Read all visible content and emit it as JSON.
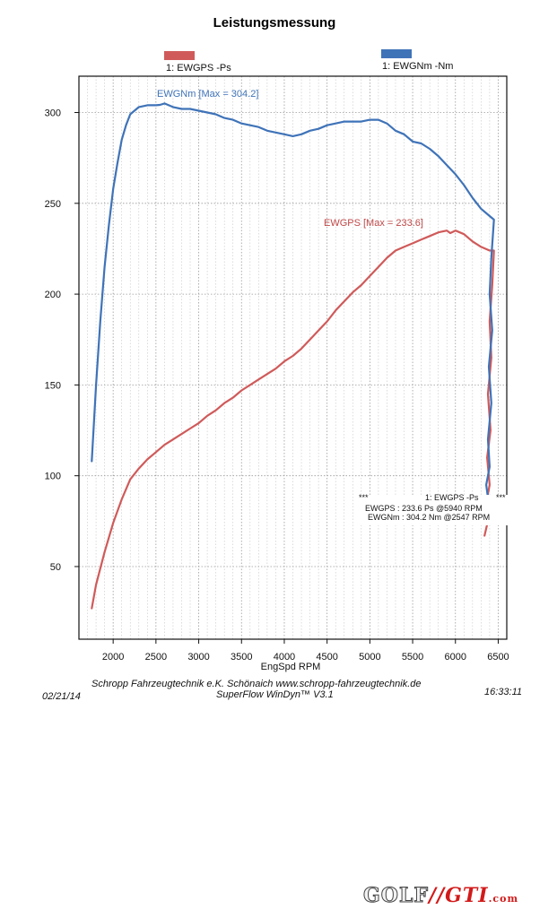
{
  "title": "Leistungsmessung",
  "legend": [
    {
      "label": "1: EWGPS -Ps",
      "color": "#d05a5a"
    },
    {
      "label": "1: EWGNm -Nm",
      "color": "#3f73b8"
    }
  ],
  "annotations": {
    "torque_max": "EWGNm  [Max = 304.2]",
    "power_max": "EWGPS  [Max = 233.6]"
  },
  "summary": {
    "stars_left": "***",
    "header": "1: EWGPS -Ps",
    "stars_right": "***",
    "line1": "EWGPS :  233.6 Ps        @5940 RPM",
    "line2": "EWGNm :   304.2 Nm   @2547 RPM"
  },
  "footer": {
    "company": "Schropp Fahrzeugtechnik e.K.    Schönaich    www.schropp-fahrzeugtechnik.de",
    "software": "SuperFlow WinDyn™ V3.1",
    "date": "02/21/14",
    "time": "16:33:11"
  },
  "logo": {
    "part1": "GOLF",
    "part2": "GTI",
    "part3": ".com"
  },
  "chart_data": {
    "type": "line",
    "xlabel": "EngSpd RPM",
    "ylabel": "",
    "xlim": [
      1600,
      6600
    ],
    "ylim": [
      10,
      320
    ],
    "xticks": [
      2000,
      2500,
      3000,
      3500,
      4000,
      4500,
      5000,
      5500,
      6000,
      6500
    ],
    "yticks": [
      50,
      100,
      150,
      200,
      250,
      300
    ],
    "grid": true,
    "legend_position": "top",
    "series": [
      {
        "name": "1: EWGPS -Ps",
        "color": "#d05a5a",
        "x": [
          1750,
          1800,
          1900,
          2000,
          2100,
          2200,
          2300,
          2400,
          2500,
          2600,
          2700,
          2800,
          2900,
          3000,
          3100,
          3200,
          3300,
          3400,
          3500,
          3600,
          3700,
          3800,
          3900,
          4000,
          4100,
          4200,
          4300,
          4400,
          4500,
          4600,
          4700,
          4800,
          4900,
          5000,
          5100,
          5200,
          5300,
          5400,
          5500,
          5600,
          5700,
          5800,
          5900,
          5940,
          6000,
          6100,
          6200,
          6300,
          6400,
          6450,
          6430,
          6400,
          6420,
          6380,
          6410,
          6370,
          6400,
          6360,
          6380,
          6340
        ],
        "y": [
          27,
          40,
          58,
          74,
          87,
          98,
          104,
          109,
          113,
          117,
          120,
          123,
          126,
          129,
          133,
          136,
          140,
          143,
          147,
          150,
          153,
          156,
          159,
          163,
          166,
          170,
          175,
          180,
          185,
          191,
          196,
          201,
          205,
          210,
          215,
          220,
          224,
          226,
          228,
          230,
          232,
          234,
          235,
          233.6,
          235,
          233,
          229,
          226,
          224,
          224,
          205,
          185,
          165,
          145,
          125,
          110,
          95,
          85,
          75,
          67
        ]
      },
      {
        "name": "1: EWGNm -Nm",
        "color": "#3f73b8",
        "x": [
          1750,
          1800,
          1850,
          1900,
          1950,
          2000,
          2050,
          2100,
          2150,
          2200,
          2300,
          2400,
          2500,
          2547,
          2600,
          2700,
          2800,
          2900,
          3000,
          3100,
          3200,
          3300,
          3400,
          3500,
          3600,
          3700,
          3800,
          3900,
          4000,
          4100,
          4200,
          4300,
          4400,
          4500,
          4600,
          4700,
          4800,
          4900,
          5000,
          5100,
          5200,
          5300,
          5400,
          5500,
          5600,
          5700,
          5800,
          5900,
          6000,
          6100,
          6200,
          6300,
          6400,
          6450,
          6420,
          6400,
          6430,
          6390,
          6420,
          6380,
          6400,
          6360,
          6380,
          6350
        ],
        "y": [
          108,
          150,
          185,
          215,
          238,
          258,
          272,
          285,
          293,
          299,
          303,
          304,
          304,
          304.2,
          305,
          303,
          302,
          302,
          301,
          300,
          299,
          297,
          296,
          294,
          293,
          292,
          290,
          289,
          288,
          287,
          288,
          290,
          291,
          293,
          294,
          295,
          295,
          295,
          296,
          296,
          294,
          290,
          288,
          284,
          283,
          280,
          276,
          271,
          266,
          260,
          253,
          247,
          243,
          241,
          220,
          200,
          180,
          160,
          140,
          120,
          105,
          95,
          88,
          80
        ]
      }
    ]
  }
}
